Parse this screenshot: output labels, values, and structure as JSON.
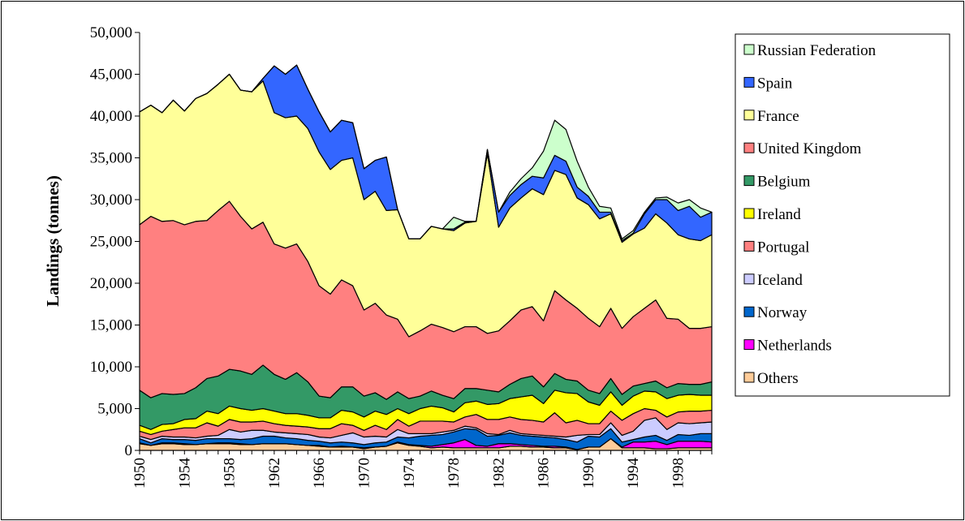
{
  "chart_data": {
    "type": "stacked-area",
    "y_label": "Landings (tonnes)",
    "x": [
      1950,
      1951,
      1952,
      1953,
      1954,
      1955,
      1956,
      1957,
      1958,
      1959,
      1960,
      1961,
      1962,
      1963,
      1964,
      1965,
      1966,
      1967,
      1968,
      1969,
      1970,
      1971,
      1972,
      1973,
      1974,
      1975,
      1976,
      1977,
      1978,
      1979,
      1980,
      1981,
      1982,
      1983,
      1984,
      1985,
      1986,
      1987,
      1988,
      1989,
      1990,
      1991,
      1992,
      1993,
      1994,
      1995,
      1996,
      1997,
      1998,
      1999,
      2000,
      2001
    ],
    "xlim": [
      1950,
      2001
    ],
    "xticks": [
      1950,
      1954,
      1958,
      1962,
      1966,
      1970,
      1974,
      1978,
      1982,
      1986,
      1990,
      1994,
      1998
    ],
    "ylim": [
      0,
      50000
    ],
    "yticks": [
      0,
      {
        "value": 5000,
        "label": "5,000"
      },
      {
        "value": 10000,
        "label": "10,000"
      },
      {
        "value": 15000,
        "label": "15,000"
      },
      {
        "value": 20000,
        "label": "20,000"
      },
      {
        "value": 25000,
        "label": "25,000"
      },
      {
        "value": 30000,
        "label": "30,000"
      },
      {
        "value": 35000,
        "label": "35,000"
      },
      {
        "value": 40000,
        "label": "40,000"
      },
      {
        "value": 45000,
        "label": "45,000"
      },
      {
        "value": 50000,
        "label": "50,000"
      }
    ],
    "legend_position": "right",
    "series": [
      {
        "name": "Others",
        "color": "#ffcc99",
        "values": [
          800,
          600,
          800,
          800,
          700,
          700,
          800,
          800,
          800,
          700,
          700,
          800,
          800,
          800,
          700,
          600,
          500,
          400,
          400,
          400,
          200,
          400,
          500,
          900,
          600,
          500,
          300,
          400,
          300,
          300,
          300,
          300,
          300,
          500,
          500,
          400,
          400,
          300,
          300,
          100,
          400,
          400,
          1400,
          300,
          300,
          300,
          200,
          200,
          300,
          300,
          300,
          300
        ]
      },
      {
        "name": "Netherlands",
        "color": "#ff00ff",
        "values": [
          100,
          0,
          100,
          100,
          100,
          0,
          0,
          100,
          100,
          100,
          0,
          0,
          0,
          0,
          0,
          0,
          100,
          0,
          100,
          0,
          100,
          0,
          0,
          100,
          100,
          100,
          200,
          300,
          600,
          1000,
          300,
          200,
          500,
          300,
          200,
          200,
          100,
          200,
          100,
          0,
          0,
          0,
          0,
          100,
          700,
          700,
          900,
          500,
          800,
          800,
          800,
          700
        ]
      },
      {
        "name": "Norway",
        "color": "#0066cc",
        "values": [
          500,
          300,
          500,
          400,
          500,
          500,
          600,
          500,
          500,
          500,
          700,
          900,
          900,
          700,
          700,
          600,
          500,
          500,
          500,
          500,
          400,
          500,
          500,
          600,
          800,
          1100,
          1300,
          1200,
          1300,
          1300,
          1900,
          1200,
          1000,
          1300,
          1100,
          1100,
          1100,
          1000,
          900,
          900,
          1300,
          1200,
          1200,
          600,
          300,
          600,
          700,
          500,
          800,
          700,
          900,
          1000
        ]
      },
      {
        "name": "Iceland",
        "color": "#ccccff",
        "values": [
          300,
          400,
          300,
          300,
          300,
          300,
          300,
          400,
          1100,
          900,
          1000,
          700,
          500,
          600,
          600,
          700,
          500,
          600,
          800,
          1200,
          900,
          800,
          600,
          900,
          500,
          300,
          200,
          300,
          200,
          300,
          200,
          300,
          100,
          300,
          200,
          200,
          200,
          200,
          300,
          800,
          200,
          300,
          700,
          800,
          1000,
          2000,
          2100,
          1300,
          1400,
          1400,
          1300,
          1400
        ]
      },
      {
        "name": "Portugal",
        "color": "#ff8080",
        "values": [
          600,
          600,
          600,
          900,
          1100,
          1200,
          1600,
          1100,
          1200,
          1200,
          1000,
          1100,
          1000,
          900,
          900,
          900,
          1000,
          1100,
          1400,
          900,
          800,
          1300,
          900,
          1200,
          900,
          1500,
          1500,
          1300,
          1000,
          1100,
          1600,
          1700,
          1800,
          1600,
          1700,
          1700,
          1600,
          2800,
          1700,
          1800,
          1300,
          1300,
          1400,
          1800,
          2100,
          1400,
          900,
          1500,
          1300,
          1500,
          1400,
          1400
        ]
      },
      {
        "name": "Ireland",
        "color": "#ffff00",
        "values": [
          700,
          600,
          800,
          700,
          1000,
          1100,
          1400,
          1500,
          1600,
          1600,
          1400,
          1500,
          1500,
          1400,
          1500,
          1400,
          1300,
          1300,
          1600,
          1600,
          1600,
          1700,
          1800,
          1300,
          1500,
          1500,
          1800,
          1600,
          1200,
          1700,
          1600,
          1800,
          1900,
          2200,
          2700,
          3000,
          2200,
          2700,
          3600,
          3200,
          2600,
          2200,
          2300,
          1800,
          2100,
          2100,
          2200,
          2200,
          2000,
          2000,
          1900,
          1800
        ]
      },
      {
        "name": "Belgium",
        "color": "#339966",
        "values": [
          4200,
          3800,
          3700,
          3500,
          3100,
          3700,
          3900,
          4500,
          4400,
          4500,
          4300,
          5200,
          4400,
          4100,
          4900,
          4000,
          2600,
          2400,
          2800,
          3000,
          2500,
          2200,
          1800,
          2000,
          1800,
          1500,
          1800,
          1500,
          1600,
          1700,
          1500,
          1700,
          1400,
          1700,
          2200,
          2300,
          2000,
          2000,
          1600,
          1500,
          1400,
          1400,
          1600,
          1300,
          1200,
          900,
          1300,
          1300,
          1400,
          1200,
          1300,
          1600
        ]
      },
      {
        "name": "United Kingdom",
        "color": "#ff8080",
        "values": [
          19800,
          21700,
          20600,
          20800,
          20200,
          19900,
          18900,
          19800,
          20100,
          18500,
          17400,
          17100,
          15600,
          15700,
          15400,
          14400,
          13200,
          12400,
          12800,
          12100,
          10300,
          10700,
          10100,
          8700,
          7400,
          7800,
          8000,
          8100,
          8000,
          7400,
          7400,
          6800,
          7300,
          7600,
          8200,
          8300,
          7900,
          9900,
          9500,
          8700,
          8600,
          8000,
          8400,
          7900,
          8300,
          9000,
          9700,
          8300,
          7700,
          6700,
          6700,
          6600
        ]
      },
      {
        "name": "France",
        "color": "#ffff99",
        "values": [
          13500,
          13300,
          13000,
          14400,
          13600,
          14700,
          15200,
          15100,
          15200,
          15100,
          16400,
          16900,
          15700,
          15600,
          15300,
          15900,
          16000,
          14900,
          14300,
          15300,
          13200,
          13400,
          12500,
          13100,
          11700,
          11000,
          11700,
          11800,
          12100,
          12400,
          12600,
          21500,
          12400,
          13500,
          13400,
          14100,
          15100,
          14400,
          15000,
          13200,
          13600,
          12900,
          11300,
          10300,
          9900,
          9600,
          10300,
          11400,
          10100,
          10700,
          10500,
          11000
        ]
      },
      {
        "name": "Spain",
        "color": "#3366ff",
        "values": [
          0,
          0,
          0,
          0,
          0,
          0,
          0,
          0,
          0,
          0,
          0,
          300,
          5600,
          5200,
          6100,
          4700,
          4800,
          4500,
          4800,
          4200,
          3700,
          3700,
          6400,
          0,
          0,
          0,
          0,
          0,
          200,
          100,
          0,
          500,
          1800,
          1500,
          1600,
          1500,
          2000,
          1800,
          1600,
          1300,
          1000,
          800,
          200,
          200,
          100,
          1700,
          1700,
          2800,
          2900,
          3900,
          2800,
          2700
        ]
      },
      {
        "name": "Russian Federation",
        "color": "#ccffcc",
        "values": [
          0,
          0,
          0,
          0,
          0,
          0,
          0,
          0,
          0,
          0,
          0,
          0,
          0,
          0,
          0,
          0,
          0,
          0,
          0,
          0,
          0,
          0,
          0,
          0,
          0,
          0,
          0,
          0,
          1400,
          100,
          0,
          0,
          0,
          400,
          700,
          1000,
          3200,
          4200,
          3800,
          3100,
          1100,
          700,
          500,
          200,
          300,
          200,
          200,
          300,
          900,
          800,
          1100,
          0
        ]
      }
    ]
  }
}
